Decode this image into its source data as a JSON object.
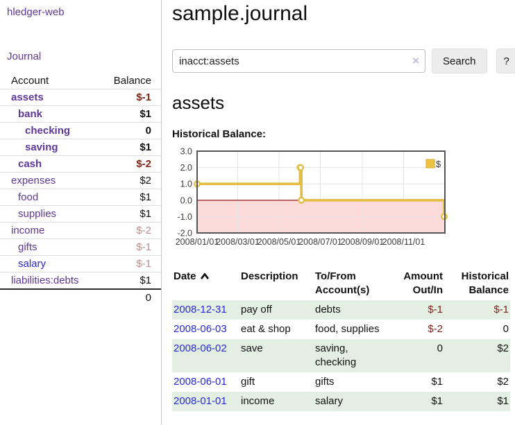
{
  "sidebar": {
    "brand": "hledger-web",
    "journal_link": "Journal",
    "accounts": {
      "header_account": "Account",
      "header_balance": "Balance",
      "rows": [
        {
          "name": "assets",
          "indent": 1,
          "bold": true,
          "balance": "$-1",
          "balance_style": "negative"
        },
        {
          "name": "bank",
          "indent": 2,
          "bold": true,
          "balance": "$1",
          "balance_style": "positive"
        },
        {
          "name": "checking",
          "indent": 3,
          "bold": true,
          "balance": "0",
          "balance_style": "positive"
        },
        {
          "name": "saving",
          "indent": 3,
          "bold": true,
          "balance": "$1",
          "balance_style": "positive"
        },
        {
          "name": "cash",
          "indent": 2,
          "bold": true,
          "balance": "$-2",
          "balance_style": "negative"
        },
        {
          "name": "expenses",
          "indent": 1,
          "bold": false,
          "balance": "$2",
          "balance_style": "positive"
        },
        {
          "name": "food",
          "indent": 2,
          "bold": false,
          "balance": "$1",
          "balance_style": "positive"
        },
        {
          "name": "supplies",
          "indent": 2,
          "bold": false,
          "balance": "$1",
          "balance_style": "positive"
        },
        {
          "name": "income",
          "indent": 1,
          "bold": false,
          "balance": "$-2",
          "balance_style": "muted-negative"
        },
        {
          "name": "gifts",
          "indent": 2,
          "bold": false,
          "balance": "$-1",
          "balance_style": "muted-negative"
        },
        {
          "name": "salary",
          "indent": 2,
          "bold": false,
          "link_style": "blue",
          "balance": "$-1",
          "balance_style": "muted-negative"
        },
        {
          "name": "liabilities:debts",
          "indent": 1,
          "bold": false,
          "balance": "$1",
          "balance_style": "positive"
        }
      ],
      "total": "0"
    }
  },
  "header": {
    "title": "sample.journal"
  },
  "search": {
    "value": "inacct:assets",
    "clear_icon": "×",
    "button_label": "Search",
    "help_label": "?"
  },
  "register": {
    "heading": "assets",
    "chart_title": "Historical Balance:"
  },
  "chart_data": {
    "type": "line",
    "step": true,
    "title": "Historical Balance",
    "x_domain": [
      "2008-01-01",
      "2009-01-01"
    ],
    "ylim": [
      -2,
      3
    ],
    "yticks": [
      {
        "value": 3,
        "label": "3.0"
      },
      {
        "value": 2,
        "label": "2.0"
      },
      {
        "value": 1,
        "label": "1.0"
      },
      {
        "value": 0,
        "label": "0.0"
      },
      {
        "value": -1,
        "label": "-1.0"
      },
      {
        "value": -2,
        "label": "-2.0"
      }
    ],
    "xticks": [
      {
        "date": "2008-01-01",
        "label": "2008/01/01"
      },
      {
        "date": "2008-03-01",
        "label": "2008/03/01"
      },
      {
        "date": "2008-05-01",
        "label": "2008/05/01"
      },
      {
        "date": "2008-07-01",
        "label": "2008/07/01"
      },
      {
        "date": "2008-09-01",
        "label": "2008/09/01"
      },
      {
        "date": "2008-11-01",
        "label": "2008/11/01"
      }
    ],
    "series": [
      {
        "name": "$",
        "color": "#e4be43",
        "marker": "open-circle",
        "points": [
          [
            "2008-01-01",
            1
          ],
          [
            "2008-06-01",
            2
          ],
          [
            "2008-06-02",
            2
          ],
          [
            "2008-06-03",
            0
          ],
          [
            "2008-12-31",
            -1
          ]
        ]
      }
    ],
    "legend": {
      "position": "top-right",
      "entries": [
        {
          "label": "$",
          "color": "#edc240"
        }
      ]
    },
    "grid": true,
    "grid_color": "#e4e4e4",
    "negative_fill": "#fcdada",
    "zero_line_color": "#8b0000",
    "border_color": "#545454",
    "tick_text_color": "#3c3c3c"
  },
  "table": {
    "columns": [
      {
        "label": "Date",
        "align": "left",
        "sorted": "asc"
      },
      {
        "label": "Description",
        "align": "left"
      },
      {
        "label": "To/From Account(s)",
        "align": "left"
      },
      {
        "label": "Amount Out/In",
        "align": "right"
      },
      {
        "label": "Historical Balance",
        "align": "right"
      }
    ],
    "rows": [
      {
        "date": "2008-12-31",
        "description": "pay off",
        "accounts": "debts",
        "amount": "$-1",
        "amount_style": "negative",
        "balance": "$-1",
        "balance_style": "negative",
        "shaded": true
      },
      {
        "date": "2008-06-03",
        "description": "eat & shop",
        "accounts": "food, supplies",
        "amount": "$-2",
        "amount_style": "negative",
        "balance": "0",
        "balance_style": "positive",
        "shaded": false
      },
      {
        "date": "2008-06-02",
        "description": "save",
        "accounts": "saving, checking",
        "amount": "0",
        "amount_style": "positive",
        "balance": "$2",
        "balance_style": "positive",
        "shaded": true
      },
      {
        "date": "2008-06-01",
        "description": "gift",
        "accounts": "gifts",
        "amount": "$1",
        "amount_style": "positive",
        "balance": "$2",
        "balance_style": "positive",
        "shaded": false
      },
      {
        "date": "2008-01-01",
        "description": "income",
        "accounts": "salary",
        "amount": "$1",
        "amount_style": "positive",
        "balance": "$1",
        "balance_style": "positive",
        "shaded": true
      }
    ]
  },
  "colors": {
    "link_purple": "#5e3799",
    "link_blue": "#2828dc",
    "negative": "#82231a",
    "muted_negative": "#bb8e8e",
    "row_green": "#e3efe2",
    "accent_yellow": "#edc240"
  }
}
